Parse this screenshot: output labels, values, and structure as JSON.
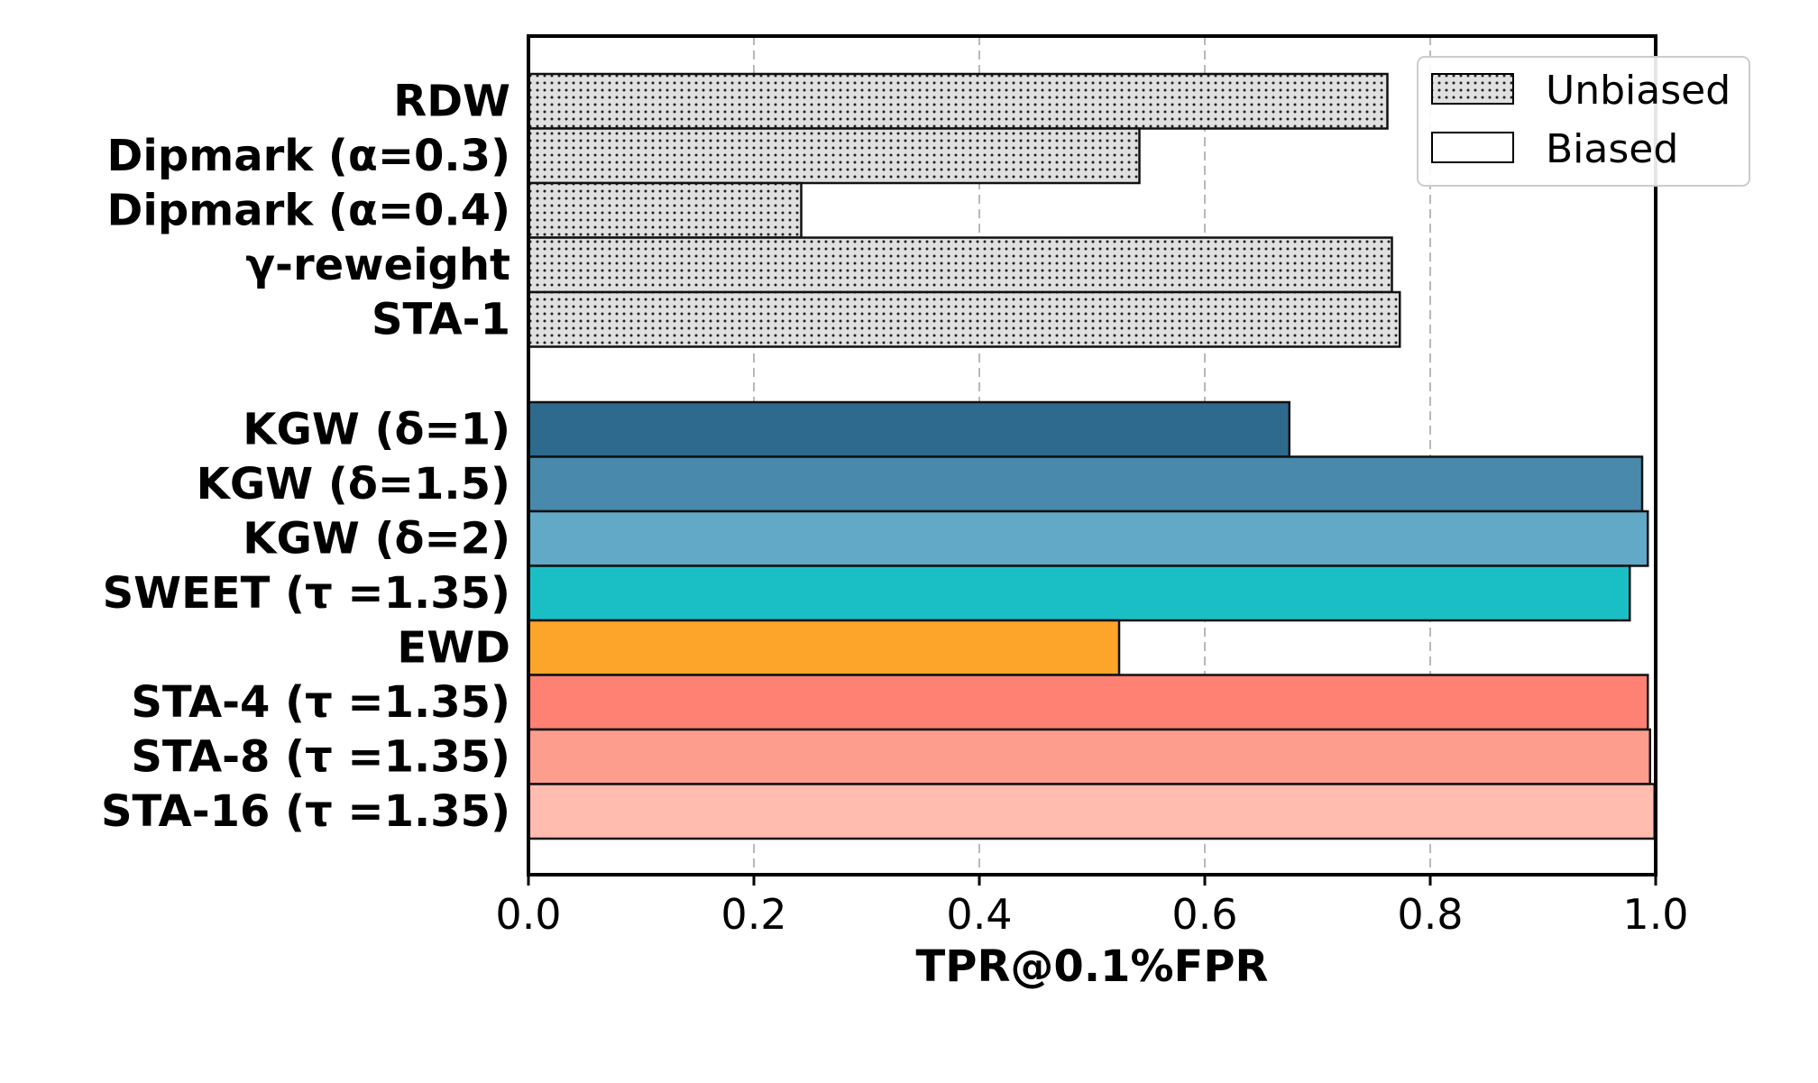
{
  "chart_data": {
    "type": "bar",
    "orientation": "horizontal",
    "xlabel": "TPR@0.1%FPR",
    "xlim": [
      0.0,
      1.0
    ],
    "xticks": [
      "0.0",
      "0.2",
      "0.4",
      "0.6",
      "0.8",
      "1.0"
    ],
    "grid": "vertical dashed",
    "legend_position": "top-right",
    "legend": [
      {
        "label": "Unbiased",
        "style": "dotted"
      },
      {
        "label": "Biased",
        "style": "plain"
      }
    ],
    "groups": [
      {
        "name": "Unbiased",
        "bars": [
          {
            "label": "RDW",
            "value": 0.762,
            "color": "#e0e0e0"
          },
          {
            "label": "Dipmark (α=0.3)",
            "value": 0.542,
            "color": "#e0e0e0"
          },
          {
            "label": "Dipmark (α=0.4)",
            "value": 0.242,
            "color": "#e0e0e0"
          },
          {
            "label": "γ-reweight",
            "value": 0.766,
            "color": "#e0e0e0"
          },
          {
            "label": "STA-1",
            "value": 0.773,
            "color": "#e0e0e0"
          }
        ]
      },
      {
        "name": "Biased",
        "bars": [
          {
            "label": "KGW (δ=1)",
            "value": 0.675,
            "color": "#2e6a8e"
          },
          {
            "label": "KGW (δ=1.5)",
            "value": 0.988,
            "color": "#4989ab"
          },
          {
            "label": "KGW (δ=2)",
            "value": 0.993,
            "color": "#62a8c7"
          },
          {
            "label": "SWEET (τ =1.35)",
            "value": 0.977,
            "color": "#1abfc6"
          },
          {
            "label": "EWD",
            "value": 0.524,
            "color": "#fca52a"
          },
          {
            "label": "STA-4 (τ =1.35)",
            "value": 0.993,
            "color": "#fe8173"
          },
          {
            "label": "STA-8 (τ =1.35)",
            "value": 0.995,
            "color": "#fd9d8d"
          },
          {
            "label": "STA-16 (τ =1.35)",
            "value": 0.999,
            "color": "#ffbcaf"
          }
        ]
      }
    ]
  }
}
